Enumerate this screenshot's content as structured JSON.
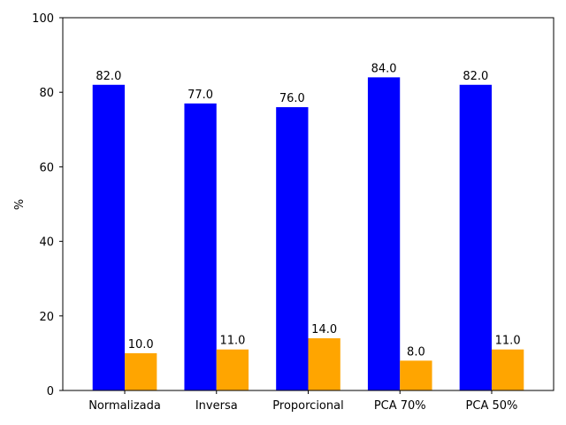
{
  "chart_data": {
    "type": "bar",
    "title": "",
    "xlabel": "",
    "ylabel": "%",
    "ylim": [
      0,
      100
    ],
    "yticks": [
      0,
      20,
      40,
      60,
      80,
      100
    ],
    "grid": false,
    "categories": [
      "Normalizada",
      "Inversa",
      "Proporcional",
      "PCA 70%",
      "PCA 50%"
    ],
    "series": [
      {
        "color": "#0000ff",
        "values": [
          82.0,
          77.0,
          76.0,
          84.0,
          82.0
        ],
        "labels": [
          "82.0",
          "77.0",
          "76.0",
          "84.0",
          "82.0"
        ]
      },
      {
        "color": "#ffa500",
        "values": [
          10.0,
          11.0,
          14.0,
          8.0,
          11.0
        ],
        "labels": [
          "10.0",
          "11.0",
          "14.0",
          "8.0",
          "11.0"
        ]
      }
    ]
  }
}
